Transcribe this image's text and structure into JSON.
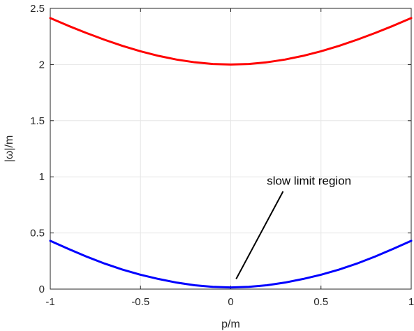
{
  "chart_data": {
    "type": "line",
    "title": "",
    "xlabel": "p/m",
    "ylabel": "|ω|/m",
    "xlim": [
      -1,
      1
    ],
    "ylim": [
      0,
      2.5
    ],
    "xticks": [
      -1,
      -0.5,
      0,
      0.5,
      1
    ],
    "xtick_labels": [
      "-1",
      "-0.5",
      "0",
      "0.5",
      "1"
    ],
    "yticks": [
      0,
      0.5,
      1,
      1.5,
      2,
      2.5
    ],
    "ytick_labels": [
      "0",
      "0.5",
      "1",
      "1.5",
      "2",
      "2.5"
    ],
    "grid": true,
    "series": [
      {
        "color": "#ff0000",
        "x": [
          -1,
          -0.9,
          -0.8,
          -0.7,
          -0.6,
          -0.5,
          -0.4,
          -0.3,
          -0.2,
          -0.1,
          0,
          0.1,
          0.2,
          0.3,
          0.4,
          0.5,
          0.6,
          0.7,
          0.8,
          0.9,
          1
        ],
        "y": [
          2.414,
          2.345,
          2.281,
          2.221,
          2.166,
          2.118,
          2.077,
          2.044,
          2.02,
          2.005,
          2.0,
          2.005,
          2.02,
          2.044,
          2.077,
          2.118,
          2.166,
          2.221,
          2.281,
          2.345,
          2.414
        ]
      },
      {
        "color": "#0000ff",
        "x": [
          -1,
          -0.9,
          -0.8,
          -0.7,
          -0.6,
          -0.5,
          -0.4,
          -0.3,
          -0.2,
          -0.1,
          0,
          0.1,
          0.2,
          0.3,
          0.4,
          0.5,
          0.6,
          0.7,
          0.8,
          0.9,
          1
        ],
        "y": [
          0.43,
          0.358,
          0.29,
          0.228,
          0.174,
          0.128,
          0.09,
          0.058,
          0.034,
          0.02,
          0.015,
          0.02,
          0.034,
          0.058,
          0.09,
          0.128,
          0.174,
          0.228,
          0.29,
          0.358,
          0.43
        ]
      }
    ],
    "annotation": {
      "text": "slow limit region",
      "text_at": [
        0.2,
        0.93
      ],
      "arrow_to": [
        0.03,
        0.09
      ]
    }
  }
}
